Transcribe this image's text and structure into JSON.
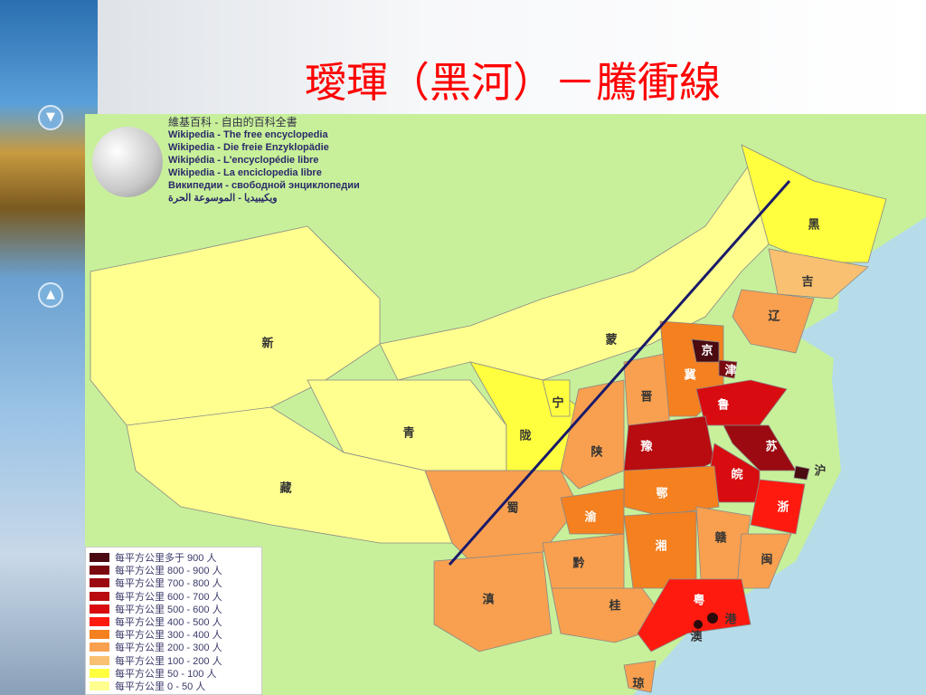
{
  "title": "璦琿（黑河）－騰衝線",
  "wiki": {
    "lines": [
      "維基百科 - 自由的百科全書",
      "Wikipedia - The free encyclopedia",
      "Wikipedia - Die freie Enzyklopädie",
      "Wikipédia - L'encyclopédie libre",
      "Wikipedia - La enciclopedia libre",
      "Википедии - свободной энциклопедии",
      "ويكيبيديا - الموسوعة الحرة"
    ]
  },
  "legend": [
    {
      "label": "每平方公里多于 900 人",
      "color": "#4a0a10"
    },
    {
      "label": "每平方公里 800 - 900 人",
      "color": "#7a0a10"
    },
    {
      "label": "每平方公里 700 - 800 人",
      "color": "#9a0a10"
    },
    {
      "label": "每平方公里 600 - 700 人",
      "color": "#b80c10"
    },
    {
      "label": "每平方公里 500 - 600 人",
      "color": "#d80c10"
    },
    {
      "label": "每平方公里 400 - 500 人",
      "color": "#ff1a10"
    },
    {
      "label": "每平方公里 300 - 400 人",
      "color": "#f48020"
    },
    {
      "label": "每平方公里 200 - 300 人",
      "color": "#f8a050"
    },
    {
      "label": "每平方公里 100 - 200 人",
      "color": "#f8c070"
    },
    {
      "label": "每平方公里 50 - 100 人",
      "color": "#ffff40"
    },
    {
      "label": "每平方公里 0 - 50 人",
      "color": "#ffff90"
    }
  ],
  "provinces": [
    {
      "name": "黑",
      "fill": "#ffff40"
    },
    {
      "name": "吉",
      "fill": "#f8c070"
    },
    {
      "name": "辽",
      "fill": "#f8a050"
    },
    {
      "name": "蒙",
      "fill": "#ffff90"
    },
    {
      "name": "新",
      "fill": "#ffff90"
    },
    {
      "name": "京",
      "fill": "#4a0a10"
    },
    {
      "name": "津",
      "fill": "#7a0a10"
    },
    {
      "name": "冀",
      "fill": "#f48020"
    },
    {
      "name": "晋",
      "fill": "#f8a050"
    },
    {
      "name": "宁",
      "fill": "#ffff40"
    },
    {
      "name": "鲁",
      "fill": "#d80c10"
    },
    {
      "name": "青",
      "fill": "#ffff90"
    },
    {
      "name": "陇",
      "fill": "#ffff40"
    },
    {
      "name": "豫",
      "fill": "#b80c10"
    },
    {
      "name": "苏",
      "fill": "#9a0a10"
    },
    {
      "name": "陕",
      "fill": "#f8a050"
    },
    {
      "name": "沪",
      "fill": "#4a0a10"
    },
    {
      "name": "皖",
      "fill": "#d80c10"
    },
    {
      "name": "藏",
      "fill": "#ffff90"
    },
    {
      "name": "蜀",
      "fill": "#f8a050"
    },
    {
      "name": "鄂",
      "fill": "#f48020"
    },
    {
      "name": "浙",
      "fill": "#ff1a10"
    },
    {
      "name": "渝",
      "fill": "#f48020"
    },
    {
      "name": "湘",
      "fill": "#f48020"
    },
    {
      "name": "赣",
      "fill": "#f8a050"
    },
    {
      "name": "闽",
      "fill": "#f8a050"
    },
    {
      "name": "黔",
      "fill": "#f8a050"
    },
    {
      "name": "滇",
      "fill": "#f8a050"
    },
    {
      "name": "桂",
      "fill": "#f8a050"
    },
    {
      "name": "粤",
      "fill": "#ff1a10"
    },
    {
      "name": "港",
      "fill": "#4a0a10"
    },
    {
      "name": "澳",
      "fill": "#4a0a10"
    },
    {
      "name": "琼",
      "fill": "#f8a050"
    }
  ]
}
